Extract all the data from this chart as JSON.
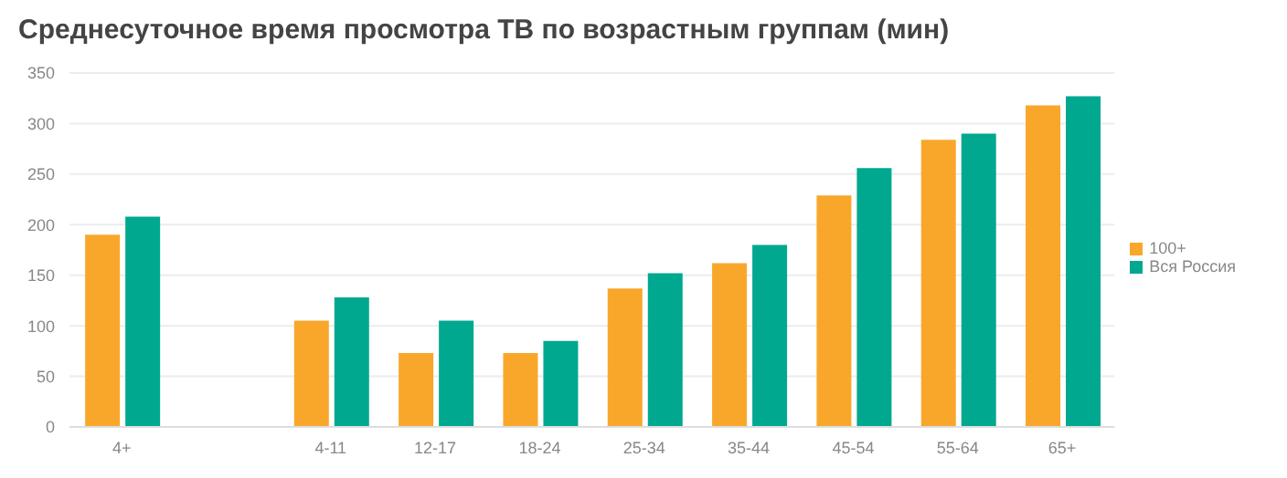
{
  "chart_data": {
    "type": "bar",
    "title": "Среднесуточное время просмотра ТВ по возрастным группам (мин)",
    "categories": [
      "4+",
      null,
      "4-11",
      "12-17",
      "18-24",
      "25-34",
      "35-44",
      "45-54",
      "55-64",
      "65+"
    ],
    "series": [
      {
        "name": "100+",
        "color": "#f9a72b",
        "values": [
          190,
          null,
          105,
          73,
          73,
          137,
          162,
          229,
          284,
          318
        ]
      },
      {
        "name": "Вся Россия",
        "color": "#00a88f",
        "values": [
          208,
          null,
          128,
          105,
          85,
          152,
          180,
          256,
          290,
          327
        ]
      }
    ],
    "ylim": [
      0,
      350
    ],
    "yticks": [
      0,
      50,
      100,
      150,
      200,
      250,
      300,
      350
    ],
    "grid": "y",
    "legend": "right"
  }
}
